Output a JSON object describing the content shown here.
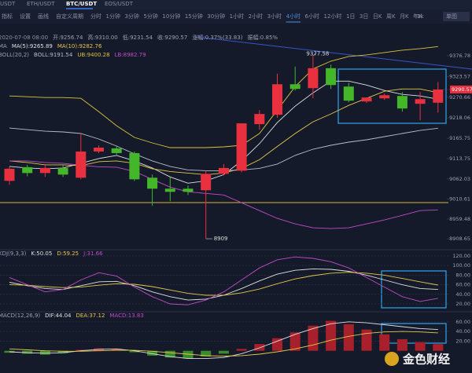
{
  "tabs": [
    "USDT",
    "ETH/USDT",
    "BTC/USDT",
    "EOS/USDT"
  ],
  "toolbar": [
    "指标",
    "设置",
    "画线",
    "自定义周期",
    "分时",
    "1分钟",
    "3分钟",
    "5分钟",
    "10分钟",
    "15分钟",
    "30分钟",
    "1小时",
    "2小时",
    "3小时",
    "4小时",
    "6小时",
    "12小时",
    "1日",
    "3日",
    "日K",
    "周K",
    "月K",
    "年K"
  ],
  "toolbar_right": [
    "1k",
    "单图"
  ],
  "watermark": "金色财经",
  "chart_data": [
    {
      "type": "candlestick",
      "info": [
        "2020-07-08 08:00",
        "开:9256.74",
        "高:9310.00",
        "低:9231.54",
        "收:9290.57",
        "涨幅:0.37%(33.83)",
        "振幅:0.85%"
      ],
      "open": [
        9057,
        9092,
        9077,
        9090,
        9065,
        9132,
        9140,
        9128,
        9065,
        9037,
        9037,
        9033,
        9075,
        9083,
        9202,
        9226,
        9304,
        9294,
        9345,
        9298,
        9260,
        9268,
        9274,
        9254,
        9256.74
      ],
      "high": [
        9094,
        9098,
        9100,
        9098,
        9178,
        9148,
        9146,
        9132,
        9073,
        9067,
        9045,
        9083,
        9100,
        9204,
        9238,
        9331,
        9349,
        9377.58,
        9354,
        9308,
        9270,
        9280,
        9284,
        9284,
        9310
      ],
      "low": [
        9047,
        9069,
        9067,
        9067,
        9061,
        9128,
        9124,
        9057,
        8993,
        9005,
        9021,
        8909,
        9071,
        9079,
        9188,
        9218,
        9288,
        9268,
        9292,
        9258,
        9256,
        9264,
        9234,
        9212,
        9231.54
      ],
      "close": [
        9088,
        9077,
        9090,
        9073,
        9132,
        9142,
        9128,
        9061,
        9037,
        9029,
        9029,
        9075,
        9090,
        9204,
        9228,
        9304,
        9292,
        9345,
        9302,
        9262,
        9270,
        9276,
        9242,
        9266,
        9290.57
      ],
      "up_color": "#e8303f",
      "down_color": "#43b62a",
      "overlays": [
        {
          "name": "MA",
          "series": [
            {
              "name": "MA(5):9265.89",
              "color": "#e0e0e0",
              "values": [
                9094,
                9090,
                9088,
                9090,
                9102,
                9114,
                9122,
                9108,
                9090,
                9067,
                9051,
                9057,
                9073,
                9108,
                9152,
                9206,
                9248,
                9282,
                9312,
                9312,
                9302,
                9288,
                9278,
                9274,
                9265.89
              ]
            },
            {
              "name": "MA(10):9282.76",
              "color": "#e3c84a",
              "values": [
                9108,
                9104,
                9098,
                9098,
                9096,
                9106,
                9108,
                9102,
                9088,
                9081,
                9077,
                9073,
                9077,
                9089,
                9111,
                9145,
                9178,
                9208,
                9228,
                9250,
                9268,
                9286,
                9292,
                9292,
                9282.76
              ]
            }
          ]
        },
        {
          "name": "BOLL(20,2)",
          "series": [
            {
              "name": "BOLL:9191.54",
              "color": "#b9bcc6",
              "values": [
                9192,
                9188,
                9184,
                9182,
                9178,
                9164,
                9146,
                9126,
                9108,
                9094,
                9085,
                9083,
                9083,
                9085,
                9089,
                9100,
                9122,
                9138,
                9148,
                9156,
                9162,
                9170,
                9178,
                9186,
                9191.54
              ]
            },
            {
              "name": "UB:9400.28",
              "color": "#d9c43a",
              "values": [
                9274,
                9272,
                9270,
                9270,
                9268,
                9234,
                9198,
                9168,
                9154,
                9142,
                9142,
                9142,
                9144,
                9148,
                9178,
                9238,
                9298,
                9343,
                9363,
                9375,
                9379,
                9385,
                9391,
                9395,
                9400.28
              ]
            },
            {
              "name": "LB:8982.79",
              "color": "#c24bc4",
              "values": [
                9108,
                9108,
                9104,
                9102,
                9097,
                9093,
                9092,
                9081,
                9061,
                9041,
                9029,
                9025,
                9021,
                9001,
                8981,
                8961,
                8947,
                8937,
                8935,
                8937,
                8947,
                8957,
                8969,
                8981,
                8982.79
              ]
            }
          ]
        }
      ],
      "ylim": [
        8881,
        9429
      ],
      "yticks": [
        9376.78,
        9323.57,
        9270.66,
        9218.06,
        9165.75,
        9113.75,
        9062.03,
        9010.61,
        8959.48,
        8908.65
      ],
      "grid": false
    },
    {
      "type": "line",
      "indicator": "KDJ(9,3,3)",
      "series": [
        {
          "name": "K:50.05",
          "color": "#e0e0e0",
          "values": [
            65,
            58,
            52,
            50,
            58,
            66,
            67,
            58,
            45,
            35,
            28,
            30,
            38,
            52,
            68,
            82,
            90,
            93,
            92,
            88,
            80,
            70,
            60,
            52,
            50.05
          ]
        },
        {
          "name": "D:59.25",
          "color": "#e3c84a",
          "values": [
            60,
            59,
            56,
            54,
            55,
            59,
            62,
            61,
            56,
            49,
            42,
            38,
            38,
            43,
            51,
            62,
            72,
            79,
            84,
            86,
            84,
            80,
            73,
            66,
            59.25
          ]
        },
        {
          "name": "J:31.66",
          "color": "#c24bc4",
          "values": [
            75,
            60,
            45,
            50,
            70,
            85,
            78,
            55,
            35,
            20,
            18,
            28,
            45,
            70,
            95,
            112,
            118,
            115,
            108,
            95,
            75,
            55,
            35,
            25,
            31.66
          ]
        }
      ],
      "ylim": [
        8.5,
        133
      ],
      "yticks": [
        {
          "value": 120,
          "label": "120.00"
        },
        {
          "value": 100,
          "label": "100.00"
        },
        {
          "value": 80,
          "label": "80.00"
        },
        {
          "value": 60,
          "label": "60.00"
        },
        {
          "value": 40,
          "label": "40.00"
        },
        {
          "value": 20,
          "label": "20.00"
        }
      ],
      "grid": true
    },
    {
      "type": "line",
      "indicator": "MACD(12,26,9)",
      "series": [
        {
          "name": "DIF:44.04",
          "color": "#e0e0e0",
          "values": [
            -2,
            -4,
            -5,
            -4,
            0,
            3,
            4,
            0,
            -6,
            -12,
            -16,
            -16,
            -14,
            -6,
            6,
            20,
            34,
            46,
            56,
            60,
            58,
            54,
            50,
            46,
            44.04
          ]
        },
        {
          "name": "DEA:37.12",
          "color": "#e3c84a",
          "values": [
            4,
            2,
            0,
            -1,
            -1,
            0,
            1,
            1,
            -1,
            -4,
            -7,
            -10,
            -11,
            -10,
            -7,
            -2,
            4,
            12,
            22,
            30,
            36,
            39,
            40,
            39,
            37.12
          ]
        },
        {
          "name": "MACD:13.83",
          "type": "bar",
          "color": "#c24bc4",
          "up_color": "#a8202b",
          "down_color": "#3a8c2a",
          "values": [
            -4,
            -6,
            -8,
            -5,
            2,
            5,
            4,
            -3,
            -10,
            -14,
            -16,
            -12,
            -6,
            4,
            14,
            26,
            38,
            52,
            62,
            55,
            44,
            34,
            24,
            18,
            13.83
          ]
        }
      ],
      "ylim": [
        -46,
        76
      ],
      "yticks": [
        {
          "value": 60,
          "label": "60.00"
        },
        {
          "value": 40,
          "label": "40.00"
        },
        {
          "value": 20,
          "label": "20.00"
        }
      ],
      "grid": true
    }
  ]
}
